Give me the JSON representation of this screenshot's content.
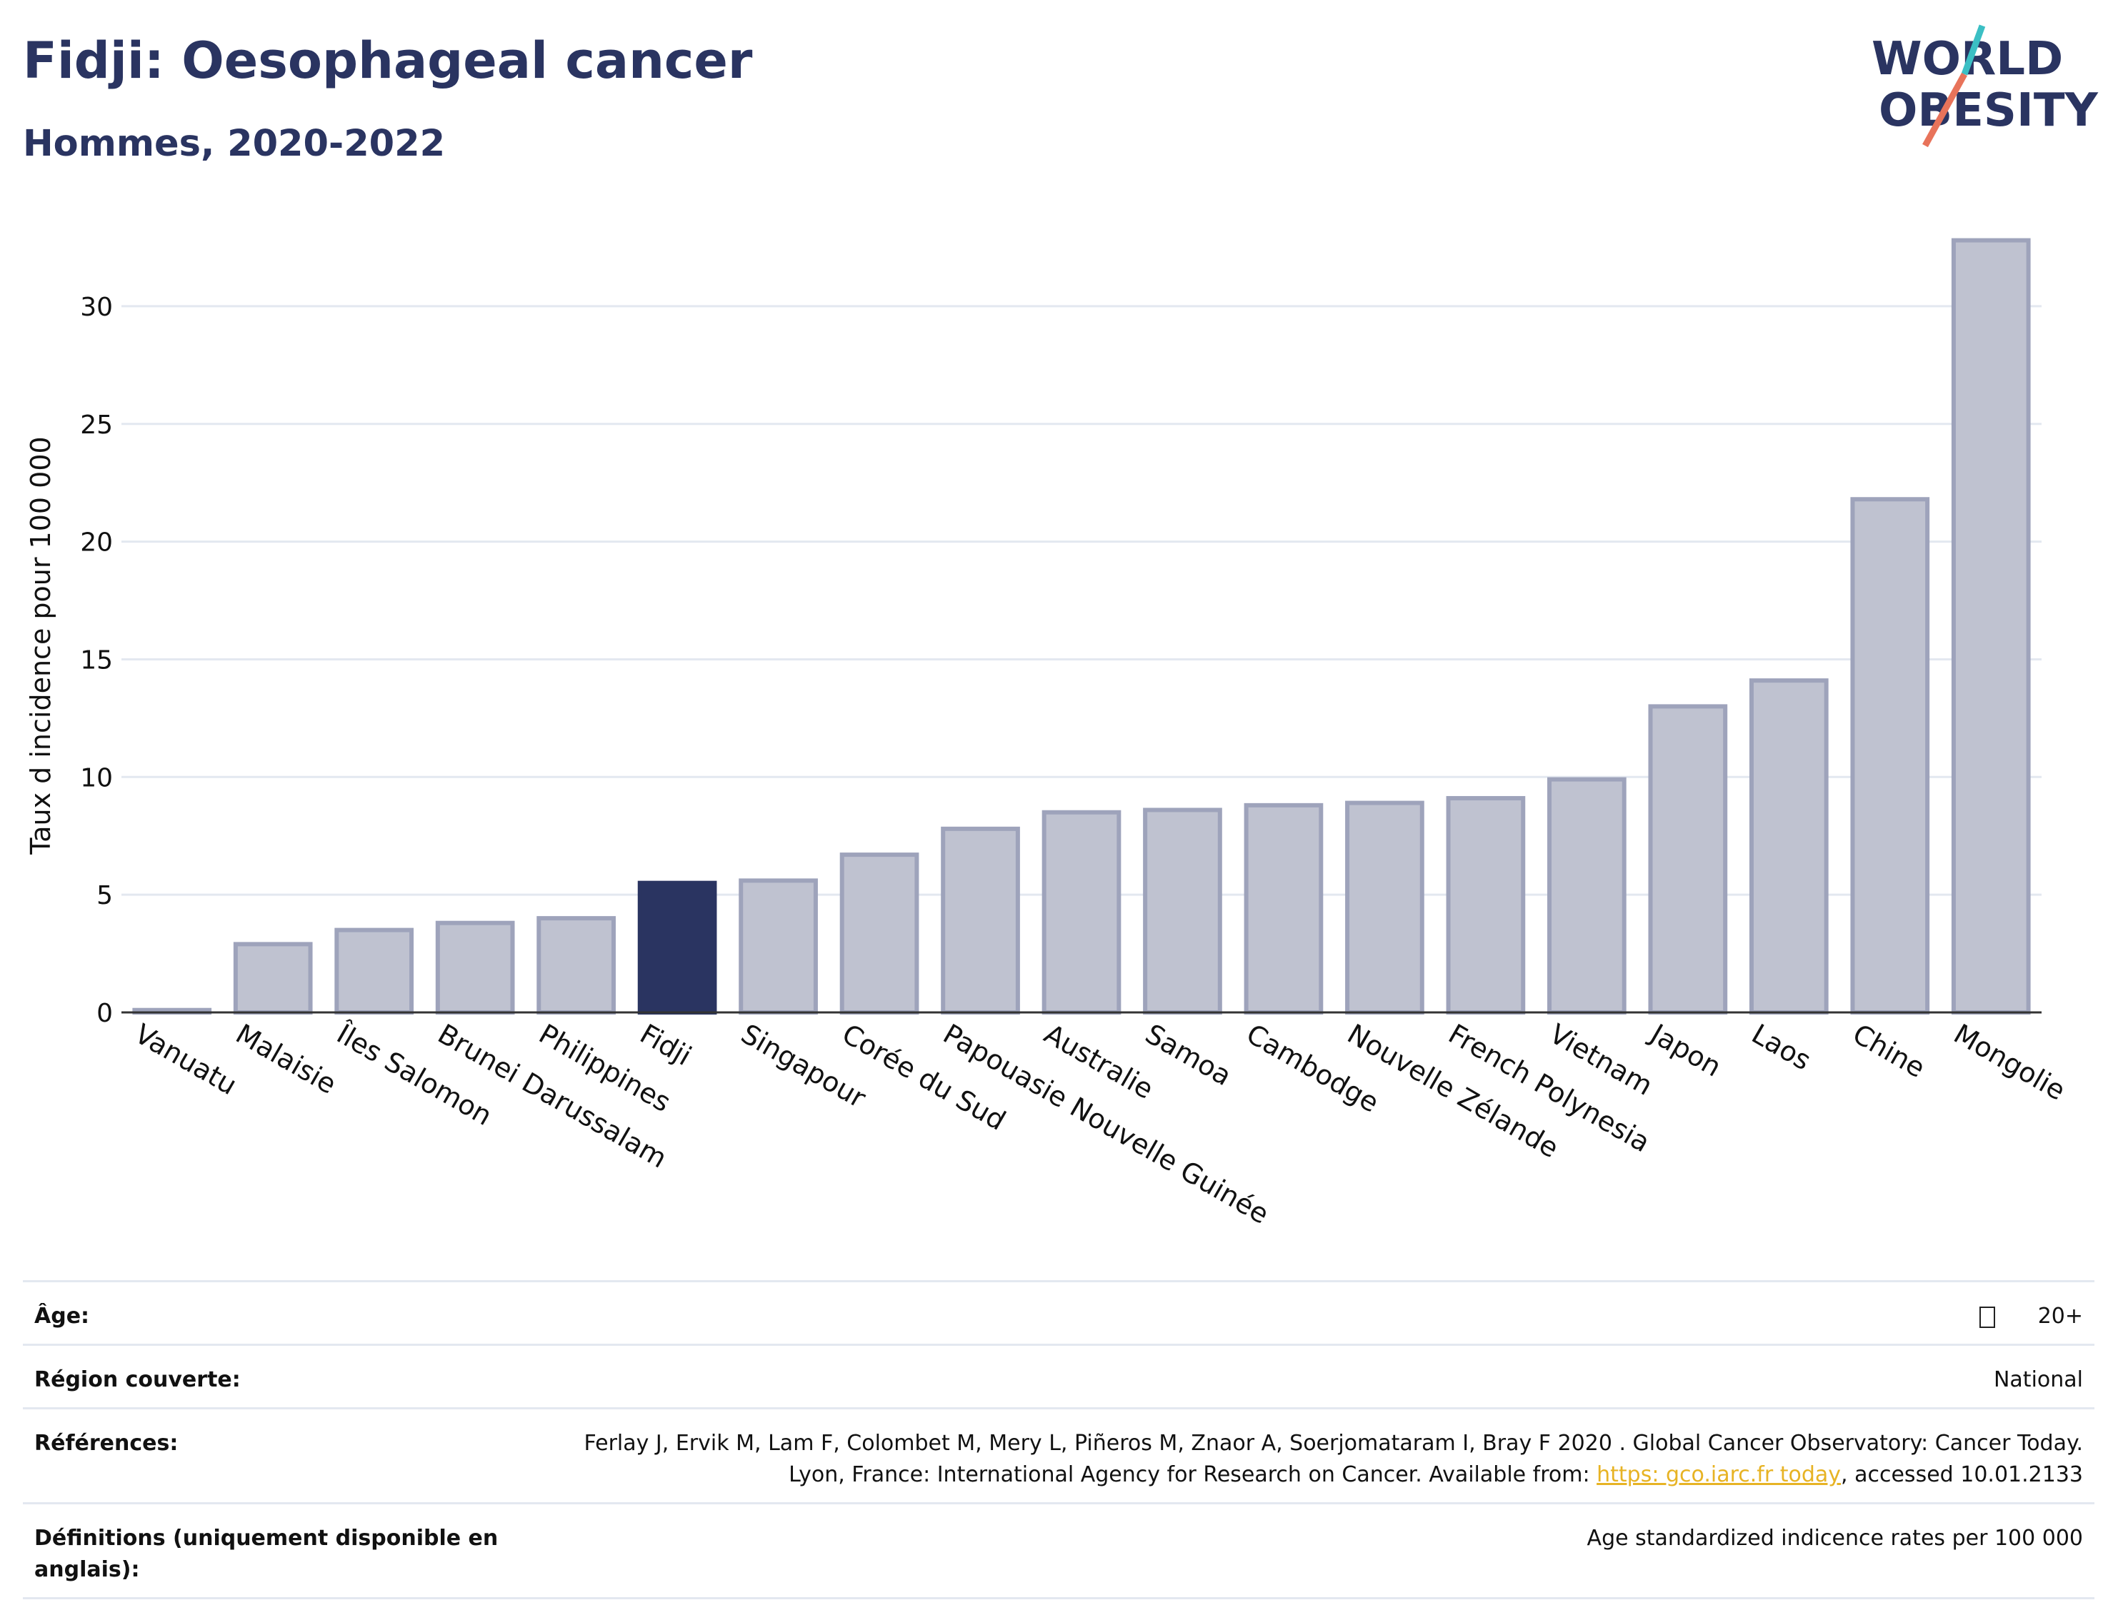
{
  "header": {
    "title": "Fidji: Oesophageal cancer",
    "subtitle": "Hommes, 2020-2022"
  },
  "logo": {
    "line1": "WORLD",
    "line2": "OBESITY",
    "colors": {
      "text": "#2a3461",
      "accent_teal": "#3bbfc4",
      "accent_coral": "#e8735a"
    }
  },
  "colors": {
    "bar": "#bfc2d0",
    "bar_border": "#9ea3bb",
    "highlight": "#2a3461",
    "grid": "#e3e8f0",
    "axis": "#333333"
  },
  "chart_data": {
    "type": "bar",
    "title": "Fidji: Oesophageal cancer",
    "subtitle": "Hommes, 2020-2022",
    "ylabel": "Taux d incidence pour 100 000",
    "xlabel": "",
    "ylim": [
      0,
      33
    ],
    "yticks": [
      0,
      5,
      10,
      15,
      20,
      25,
      30
    ],
    "grid": true,
    "highlight_category": "Fidji",
    "categories": [
      "Vanuatu",
      "Malaisie",
      "Îles Salomon",
      "Brunei Darussalam",
      "Philippines",
      "Fidji",
      "Singapour",
      "Corée du Sud",
      "Papouasie Nouvelle  Guinée",
      "Australie",
      "Samoa",
      "Cambodge",
      "Nouvelle  Zélande",
      "French Polynesia",
      "Vietnam",
      "Japon",
      "Laos",
      "Chine",
      "Mongolie"
    ],
    "values": [
      0.1,
      2.9,
      3.5,
      3.8,
      4.0,
      5.5,
      5.6,
      6.7,
      7.8,
      8.5,
      8.6,
      8.8,
      8.9,
      9.1,
      9.9,
      13.0,
      14.1,
      21.8,
      32.8
    ]
  },
  "metadata": {
    "rows": [
      {
        "label": "Âge:",
        "value": "20+"
      },
      {
        "label": "Région couverte:",
        "value": "National"
      },
      {
        "label": "Références:",
        "value_pre": "Ferlay J, Ervik M, Lam F, Colombet M, Mery L, Piñeros M, Znaor A, Soerjomataram I, Bray F  2020 . Global Cancer Observatory: Cancer Today. Lyon, France: International Agency for Research on Cancer. Available from: ",
        "link": "https:  gco.iarc.fr today",
        "value_post": ", accessed 10.01.2133"
      },
      {
        "label": "Définitions (uniquement disponible en anglais):",
        "value": "Age  standardized indicence rates per 100 000"
      }
    ]
  }
}
